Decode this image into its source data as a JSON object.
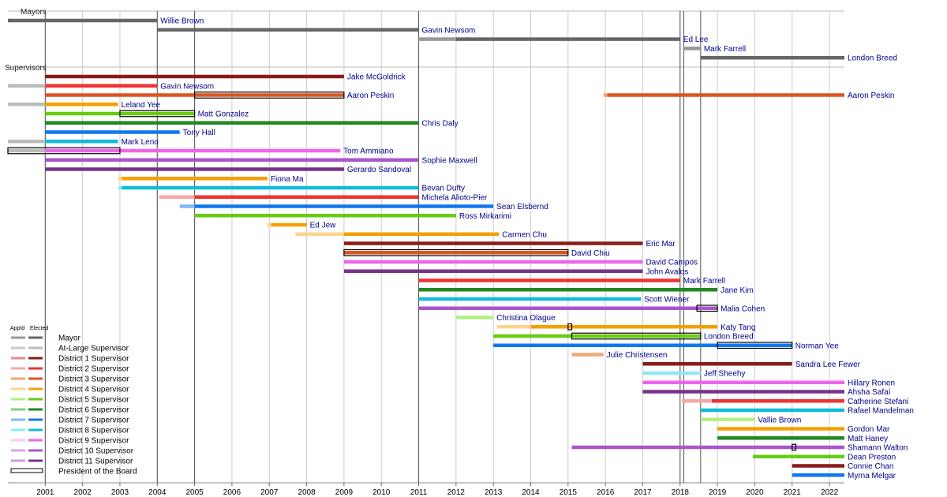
{
  "chart_data": {
    "type": "timeline",
    "title": "",
    "xlim": [
      2000.0,
      2022.4
    ],
    "x_ticks": [
      "2001",
      "2002",
      "2003",
      "2004",
      "2005",
      "2006",
      "2007",
      "2008",
      "2009",
      "2010",
      "2011",
      "2012",
      "2013",
      "2014",
      "2015",
      "2016",
      "2017",
      "2018",
      "2019",
      "2020",
      "2021",
      "2022"
    ],
    "sections": [
      {
        "label": "Mayors",
        "row": 0
      },
      {
        "label": "Supervisors",
        "row": 6
      }
    ],
    "vertical_markers": [
      2001,
      2004,
      2005,
      2011,
      2018.0,
      2018.1,
      2018.55
    ],
    "colors": {
      "mayor": [
        "#999999",
        "#666666"
      ],
      "at_large": [
        "#c8c8c8",
        "#bbbbbb"
      ],
      "d1": [
        "#e88a8a",
        "#8b1a1a"
      ],
      "d2": [
        "#f4a8a8",
        "#ee3333"
      ],
      "d3": [
        "#f0a878",
        "#dd5522"
      ],
      "d4": [
        "#fad58e",
        "#f5a000"
      ],
      "d5": [
        "#b3ef80",
        "#66cc11"
      ],
      "d6": [
        "#7fcf7f",
        "#228822"
      ],
      "d7": [
        "#80b8f4",
        "#1177ee"
      ],
      "d8": [
        "#90e8f4",
        "#11bbdd"
      ],
      "d9": [
        "#fac8fa",
        "#ee66ee"
      ],
      "d10": [
        "#d8a8e4",
        "#aa55cc"
      ],
      "d11": [
        "#c8a0d0",
        "#773388"
      ]
    },
    "legend": {
      "header_appointed": "Apptd",
      "header_elected": "Elected",
      "entries": [
        {
          "label": "Mayor",
          "key": "mayor"
        },
        {
          "label": "At-Large Supervisor",
          "key": "at_large"
        },
        {
          "label": "District 1 Supervisor",
          "key": "d1"
        },
        {
          "label": "District 2 Supervisor",
          "key": "d2"
        },
        {
          "label": "District 3 Supervisor",
          "key": "d3"
        },
        {
          "label": "District 4 Supervisor",
          "key": "d4"
        },
        {
          "label": "District 5 Supervisor",
          "key": "d5"
        },
        {
          "label": "District 6 Supervisor",
          "key": "d6"
        },
        {
          "label": "District 7 Supervisor",
          "key": "d7"
        },
        {
          "label": "District 8 Supervisor",
          "key": "d8"
        },
        {
          "label": "District 9 Supervisor",
          "key": "d9"
        },
        {
          "label": "District 10 Supervisor",
          "key": "d10"
        },
        {
          "label": "District 11 Supervisor",
          "key": "d11"
        },
        {
          "label": "President of the Board",
          "key": "president"
        }
      ]
    },
    "rows": [
      {
        "row": 0,
        "label": "Willie Brown",
        "segments": [
          {
            "start": 2000.0,
            "end": 2004.0,
            "role": "mayor",
            "appointed": false
          }
        ]
      },
      {
        "row": 1,
        "label": "Gavin Newsom",
        "segments": [
          {
            "start": 2004.0,
            "end": 2011.0,
            "role": "mayor",
            "appointed": false
          }
        ]
      },
      {
        "row": 2,
        "label": "Ed Lee",
        "segments": [
          {
            "start": 2011.0,
            "end": 2012.0,
            "role": "mayor",
            "appointed": true
          },
          {
            "start": 2012.0,
            "end": 2018.0,
            "role": "mayor",
            "appointed": false
          }
        ]
      },
      {
        "row": 3,
        "label": "Mark Farrell",
        "segments": [
          {
            "start": 2018.1,
            "end": 2018.55,
            "role": "mayor",
            "appointed": true
          }
        ]
      },
      {
        "row": 4,
        "label": "London Breed",
        "segments": [
          {
            "start": 2018.55,
            "end": 2022.4,
            "role": "mayor",
            "appointed": false
          }
        ]
      },
      {
        "row": 6,
        "label": "Jake McGoldrick",
        "segments": [
          {
            "start": 2001.0,
            "end": 2009.0,
            "role": "d1",
            "appointed": false
          }
        ]
      },
      {
        "row": 7,
        "label": "Gavin Newsom",
        "segments": [
          {
            "start": 2000.0,
            "end": 2001.0,
            "role": "at_large",
            "appointed": false
          },
          {
            "start": 2001.0,
            "end": 2004.0,
            "role": "d2",
            "appointed": false
          }
        ]
      },
      {
        "row": 8,
        "label": "Aaron Peskin",
        "segments": [
          {
            "start": 2001.0,
            "end": 2009.0,
            "role": "d3",
            "appointed": false
          }
        ],
        "president": [
          {
            "start": 2005.0,
            "end": 2009.0
          }
        ]
      },
      {
        "row": 8,
        "label": "Aaron Peskin",
        "segments": [
          {
            "start": 2015.95,
            "end": 2016.05,
            "role": "d3",
            "appointed": true
          },
          {
            "start": 2016.05,
            "end": 2022.4,
            "role": "d3",
            "appointed": false
          }
        ]
      },
      {
        "row": 9,
        "label": "Leland Yee",
        "segments": [
          {
            "start": 2000.0,
            "end": 2001.0,
            "role": "at_large",
            "appointed": false
          },
          {
            "start": 2001.0,
            "end": 2002.95,
            "role": "d4",
            "appointed": false
          }
        ]
      },
      {
        "row": 10,
        "label": "Matt Gonzalez",
        "segments": [
          {
            "start": 2001.0,
            "end": 2005.0,
            "role": "d5",
            "appointed": false
          }
        ],
        "president": [
          {
            "start": 2003.0,
            "end": 2005.0
          }
        ]
      },
      {
        "row": 11,
        "label": "Chris Daly",
        "segments": [
          {
            "start": 2001.0,
            "end": 2011.0,
            "role": "d6",
            "appointed": false
          }
        ]
      },
      {
        "row": 12,
        "label": "Tony Hall",
        "segments": [
          {
            "start": 2001.0,
            "end": 2004.6,
            "role": "d7",
            "appointed": false
          }
        ]
      },
      {
        "row": 13,
        "label": "Mark Leno",
        "segments": [
          {
            "start": 2000.0,
            "end": 2001.0,
            "role": "at_large",
            "appointed": false
          },
          {
            "start": 2001.0,
            "end": 2002.95,
            "role": "d8",
            "appointed": false
          }
        ]
      },
      {
        "row": 14,
        "label": "Tom Ammiano",
        "segments": [
          {
            "start": 2000.0,
            "end": 2001.0,
            "role": "at_large",
            "appointed": false
          },
          {
            "start": 2001.0,
            "end": 2008.9,
            "role": "d9",
            "appointed": false
          }
        ],
        "president": [
          {
            "start": 2000.0,
            "end": 2003.0
          }
        ]
      },
      {
        "row": 15,
        "label": "Sophie Maxwell",
        "segments": [
          {
            "start": 2001.0,
            "end": 2011.0,
            "role": "d10",
            "appointed": false
          }
        ]
      },
      {
        "row": 16,
        "label": "Gerardo Sandoval",
        "segments": [
          {
            "start": 2001.0,
            "end": 2009.0,
            "role": "d11",
            "appointed": false
          }
        ]
      },
      {
        "row": 17,
        "label": "Fiona Ma",
        "segments": [
          {
            "start": 2002.95,
            "end": 2003.05,
            "role": "d4",
            "appointed": true
          },
          {
            "start": 2003.05,
            "end": 2006.95,
            "role": "d4",
            "appointed": false
          }
        ]
      },
      {
        "row": 18,
        "label": "Bevan Dufty",
        "segments": [
          {
            "start": 2002.95,
            "end": 2003.05,
            "role": "d8",
            "appointed": true
          },
          {
            "start": 2003.05,
            "end": 2011.0,
            "role": "d8",
            "appointed": false
          }
        ]
      },
      {
        "row": 19,
        "label": "Michela Alioto-Pier",
        "segments": [
          {
            "start": 2004.05,
            "end": 2005.0,
            "role": "d2",
            "appointed": true
          },
          {
            "start": 2005.0,
            "end": 2011.0,
            "role": "d2",
            "appointed": false
          }
        ]
      },
      {
        "row": 20,
        "label": "Sean Elsbernd",
        "segments": [
          {
            "start": 2004.6,
            "end": 2005.0,
            "role": "d7",
            "appointed": true
          },
          {
            "start": 2005.0,
            "end": 2013.0,
            "role": "d7",
            "appointed": false
          }
        ]
      },
      {
        "row": 21,
        "label": "Ross Mirkarimi",
        "segments": [
          {
            "start": 2005.0,
            "end": 2012.0,
            "role": "d5",
            "appointed": false
          }
        ]
      },
      {
        "row": 22,
        "label": "Ed Jew",
        "segments": [
          {
            "start": 2006.95,
            "end": 2007.05,
            "role": "d4",
            "appointed": true
          },
          {
            "start": 2007.05,
            "end": 2008.0,
            "role": "d4",
            "appointed": false
          }
        ]
      },
      {
        "row": 23,
        "label": "Carmen Chu",
        "segments": [
          {
            "start": 2007.7,
            "end": 2009.0,
            "role": "d4",
            "appointed": true
          },
          {
            "start": 2009.0,
            "end": 2013.15,
            "role": "d4",
            "appointed": false
          }
        ]
      },
      {
        "row": 24,
        "label": "Eric Mar",
        "segments": [
          {
            "start": 2009.0,
            "end": 2017.0,
            "role": "d1",
            "appointed": false
          }
        ]
      },
      {
        "row": 25,
        "label": "David Chiu",
        "segments": [
          {
            "start": 2009.0,
            "end": 2015.0,
            "role": "d3",
            "appointed": false
          }
        ],
        "president": [
          {
            "start": 2009.0,
            "end": 2015.0
          }
        ]
      },
      {
        "row": 26,
        "label": "David Campos",
        "segments": [
          {
            "start": 2009.0,
            "end": 2017.0,
            "role": "d9",
            "appointed": false
          }
        ]
      },
      {
        "row": 27,
        "label": "John Avalos",
        "segments": [
          {
            "start": 2009.0,
            "end": 2017.0,
            "role": "d11",
            "appointed": false
          }
        ]
      },
      {
        "row": 28,
        "label": "Mark Farrell",
        "segments": [
          {
            "start": 2011.0,
            "end": 2018.0,
            "role": "d2",
            "appointed": false
          }
        ]
      },
      {
        "row": 29,
        "label": "Jane Kim",
        "segments": [
          {
            "start": 2011.0,
            "end": 2019.0,
            "role": "d6",
            "appointed": false
          }
        ]
      },
      {
        "row": 30,
        "label": "Scott Wiener",
        "segments": [
          {
            "start": 2011.0,
            "end": 2016.95,
            "role": "d8",
            "appointed": false
          }
        ]
      },
      {
        "row": 31,
        "label": "Malia Cohen",
        "segments": [
          {
            "start": 2011.0,
            "end": 2019.0,
            "role": "d10",
            "appointed": false
          }
        ],
        "president": [
          {
            "start": 2018.45,
            "end": 2019.0
          }
        ]
      },
      {
        "row": 32,
        "label": "Christina Olague",
        "segments": [
          {
            "start": 2012.0,
            "end": 2013.0,
            "role": "d5",
            "appointed": true
          }
        ]
      },
      {
        "row": 33,
        "label": "Katy Tang",
        "segments": [
          {
            "start": 2013.1,
            "end": 2014.0,
            "role": "d4",
            "appointed": true
          },
          {
            "start": 2014.0,
            "end": 2019.0,
            "role": "d4",
            "appointed": false
          }
        ],
        "president": [
          {
            "start": 2015.0,
            "end": 2015.1
          }
        ]
      },
      {
        "row": 34,
        "label": "London Breed",
        "segments": [
          {
            "start": 2013.0,
            "end": 2018.55,
            "role": "d5",
            "appointed": false
          }
        ],
        "president": [
          {
            "start": 2015.1,
            "end": 2018.55
          }
        ]
      },
      {
        "row": 35,
        "label": "Norman Yee",
        "segments": [
          {
            "start": 2013.0,
            "end": 2021.0,
            "role": "d7",
            "appointed": false
          }
        ],
        "president": [
          {
            "start": 2019.0,
            "end": 2021.0
          }
        ]
      },
      {
        "row": 36,
        "label": "Julie Christensen",
        "segments": [
          {
            "start": 2015.1,
            "end": 2015.95,
            "role": "d3",
            "appointed": true
          }
        ]
      },
      {
        "row": 37,
        "label": "Sandra Lee Fewer",
        "segments": [
          {
            "start": 2017.0,
            "end": 2021.0,
            "role": "d1",
            "appointed": false
          }
        ]
      },
      {
        "row": 38,
        "label": "Jeff Sheehy",
        "segments": [
          {
            "start": 2017.0,
            "end": 2018.55,
            "role": "d8",
            "appointed": true
          }
        ]
      },
      {
        "row": 39,
        "label": "Hillary Ronen",
        "segments": [
          {
            "start": 2017.0,
            "end": 2022.4,
            "role": "d9",
            "appointed": false
          }
        ]
      },
      {
        "row": 40,
        "label": "Ahsha Safaí",
        "segments": [
          {
            "start": 2017.0,
            "end": 2022.4,
            "role": "d11",
            "appointed": false
          }
        ]
      },
      {
        "row": 41,
        "label": "Catherine Stefani",
        "segments": [
          {
            "start": 2018.05,
            "end": 2018.85,
            "role": "d2",
            "appointed": true
          },
          {
            "start": 2018.85,
            "end": 2022.4,
            "role": "d2",
            "appointed": false
          }
        ]
      },
      {
        "row": 42,
        "label": "Rafael Mandelman",
        "segments": [
          {
            "start": 2018.55,
            "end": 2022.4,
            "role": "d8",
            "appointed": false
          }
        ]
      },
      {
        "row": 43,
        "label": "Vallie Brown",
        "segments": [
          {
            "start": 2018.55,
            "end": 2020.0,
            "role": "d5",
            "appointed": true
          }
        ]
      },
      {
        "row": 44,
        "label": "Gordon Mar",
        "segments": [
          {
            "start": 2019.0,
            "end": 2022.4,
            "role": "d4",
            "appointed": false
          }
        ]
      },
      {
        "row": 45,
        "label": "Matt Haney",
        "segments": [
          {
            "start": 2019.0,
            "end": 2022.4,
            "role": "d6",
            "appointed": false
          }
        ]
      },
      {
        "row": 46,
        "label": "Shamann Walton",
        "segments": [
          {
            "start": 2015.1,
            "end": 2022.4,
            "role": "d10",
            "appointed": false
          }
        ],
        "president": [
          {
            "start": 2021.0,
            "end": 2021.1
          }
        ]
      },
      {
        "row": 47,
        "label": "Dean Preston",
        "segments": [
          {
            "start": 2019.95,
            "end": 2022.4,
            "role": "d5",
            "appointed": false
          }
        ]
      },
      {
        "row": 48,
        "label": "Connie Chan",
        "segments": [
          {
            "start": 2021.0,
            "end": 2022.4,
            "role": "d1",
            "appointed": false
          }
        ]
      },
      {
        "row": 49,
        "label": "Myrna Melgar",
        "segments": [
          {
            "start": 2021.0,
            "end": 2022.4,
            "role": "d7",
            "appointed": false
          }
        ]
      }
    ]
  }
}
